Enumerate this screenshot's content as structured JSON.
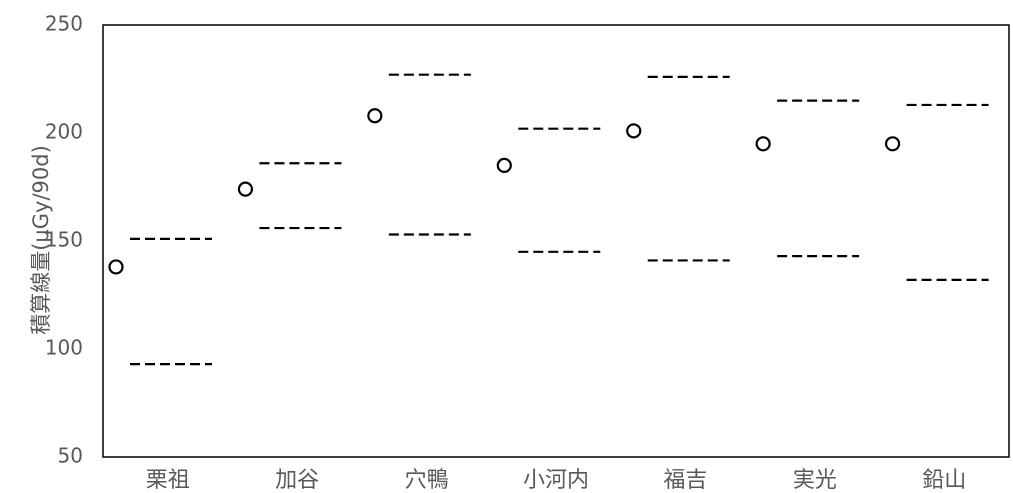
{
  "chart_data": {
    "type": "scatter",
    "title": "",
    "ylabel": "積算線量(μGy/90d)",
    "xlabel": "",
    "ylim": [
      50,
      250
    ],
    "yticks": [
      50,
      100,
      150,
      200,
      250
    ],
    "grid": false,
    "legend": "none",
    "categories": [
      "栗祖",
      "加谷",
      "穴鴨",
      "小河内",
      "福吉",
      "実光",
      "鉛山"
    ],
    "values": [
      138,
      174,
      208,
      185,
      201,
      195,
      195
    ],
    "upper_bound": [
      151,
      186,
      227,
      202,
      226,
      215,
      213
    ],
    "lower_bound": [
      93,
      156,
      153,
      145,
      141,
      143,
      132
    ],
    "colors": {
      "marker": "#000000",
      "bound": "#000000",
      "axis": "#000000",
      "text": "#595959"
    }
  }
}
